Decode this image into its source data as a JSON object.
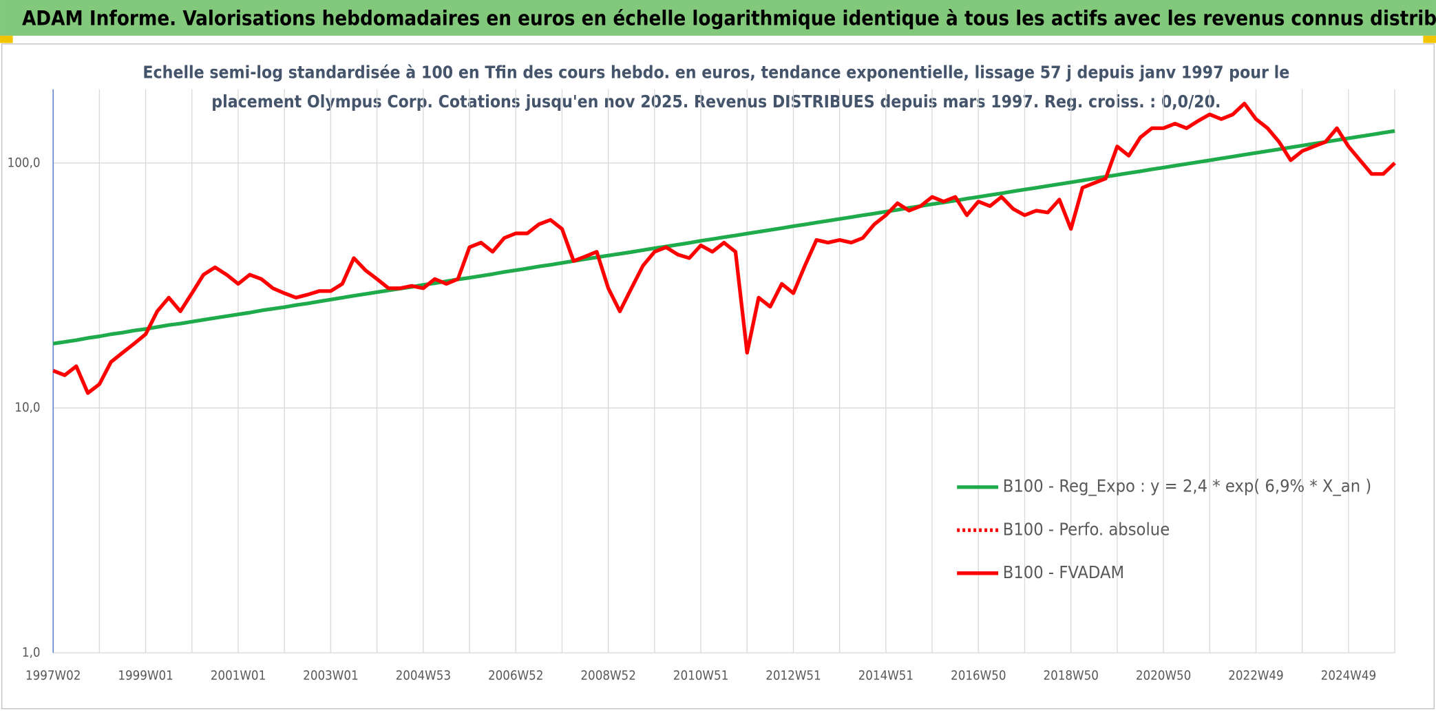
{
  "chart_data": {
    "type": "line",
    "title": "ADAM Informe. Valorisations hebdomadaires en euros en échelle logarithmique identique à tous les actifs avec les revenus connus distribués",
    "subtitle": [
      "Echelle semi-log standardisée à 100 en Tfin des cours hebdo. en euros, tendance exponentielle, lissage 57 j depuis janv 1997 pour le",
      "placement Olympus Corp. Cotations jusqu'en nov 2025. Revenus DISTRIBUES depuis mars 1997. Reg. croiss. : 0,0/20."
    ],
    "log_scale": true,
    "grid": true,
    "legend": "lower right",
    "ylim": [
      1,
      200
    ],
    "yticks": [
      {
        "value": 1,
        "label": "1,0"
      },
      {
        "value": 10,
        "label": "10,0"
      },
      {
        "value": 100,
        "label": "100,0"
      }
    ],
    "categories": [
      "1997W02",
      null,
      null,
      null,
      null,
      null,
      null,
      null,
      "1999W01",
      null,
      null,
      null,
      null,
      null,
      null,
      null,
      "2001W01",
      null,
      null,
      null,
      null,
      null,
      null,
      null,
      "2003W01",
      null,
      null,
      null,
      null,
      null,
      null,
      null,
      "2004W53",
      null,
      null,
      null,
      null,
      null,
      null,
      null,
      "2006W52",
      null,
      null,
      null,
      null,
      null,
      null,
      null,
      "2008W52",
      null,
      null,
      null,
      null,
      null,
      null,
      null,
      "2010W51",
      null,
      null,
      null,
      null,
      null,
      null,
      null,
      "2012W51",
      null,
      null,
      null,
      null,
      null,
      null,
      null,
      "2014W51",
      null,
      null,
      null,
      null,
      null,
      null,
      null,
      "2016W50",
      null,
      null,
      null,
      null,
      null,
      null,
      null,
      "2018W50",
      null,
      null,
      null,
      null,
      null,
      null,
      null,
      "2020W50",
      null,
      null,
      null,
      null,
      null,
      null,
      null,
      "2022W49",
      null,
      null,
      null,
      null,
      null,
      null,
      null,
      "2024W49",
      null,
      null,
      null,
      null
    ],
    "series": [
      {
        "name": "B100 - Reg_Expo : y = 2,4 * exp( 6,9% *  X_an )",
        "color": "#1faa4b",
        "style": "solid",
        "values": [
          18.3,
          18.6,
          18.9,
          19.3,
          19.6,
          20.0,
          20.3,
          20.7,
          21.0,
          21.4,
          21.8,
          22.1,
          22.5,
          22.9,
          23.3,
          23.7,
          24.1,
          24.5,
          25.0,
          25.4,
          25.8,
          26.3,
          26.7,
          27.2,
          27.7,
          28.2,
          28.7,
          29.2,
          29.7,
          30.2,
          30.7,
          31.2,
          31.8,
          32.3,
          32.9,
          33.5,
          34.0,
          34.6,
          35.2,
          35.9,
          36.5,
          37.1,
          37.8,
          38.4,
          39.1,
          39.8,
          40.5,
          41.2,
          41.9,
          42.6,
          43.3,
          44.1,
          44.9,
          45.6,
          46.4,
          47.2,
          48.1,
          48.9,
          49.8,
          50.6,
          51.5,
          52.4,
          53.3,
          54.2,
          55.2,
          56.1,
          57.1,
          58.1,
          59.1,
          60.1,
          61.2,
          62.2,
          63.3,
          64.4,
          65.6,
          66.7,
          67.9,
          69.0,
          70.2,
          71.5,
          72.7,
          74.0,
          75.2,
          76.6,
          77.9,
          79.2,
          80.6,
          82.0,
          83.4,
          84.9,
          86.4,
          87.9,
          89.4,
          91.0,
          92.5,
          94.2,
          95.8,
          97.5,
          99.2,
          100.9,
          102.6,
          104.4,
          106.2,
          108.1,
          110.0,
          111.9,
          113.8,
          115.8,
          117.8,
          119.9,
          121.9,
          124.1,
          126.2,
          128.4,
          130.6,
          132.9,
          135.2
        ]
      },
      {
        "name": "B100 - Perfo. absolue",
        "color": "#ff0000",
        "style": "dotted",
        "values": [
          null,
          null,
          null,
          null,
          null,
          null,
          null,
          null,
          null,
          null,
          null,
          null,
          null,
          null,
          null,
          null,
          null,
          null,
          null,
          null,
          null,
          null,
          null,
          null,
          null,
          null,
          null,
          null,
          null,
          null,
          null,
          null,
          null,
          null,
          null,
          null,
          null,
          null,
          null,
          null,
          null,
          null,
          null,
          null,
          null,
          null,
          null,
          null,
          null,
          null,
          null,
          null,
          null,
          null,
          null,
          null,
          null,
          null,
          null,
          null,
          null,
          null,
          null,
          null,
          null,
          null,
          null,
          null,
          null,
          null,
          null,
          null,
          null,
          null,
          null,
          null,
          null,
          null,
          null,
          null,
          null,
          null,
          null,
          null,
          null,
          null,
          null,
          null,
          null,
          null,
          null,
          null,
          null,
          null,
          null,
          null,
          null,
          null,
          null,
          null,
          null,
          null,
          null,
          null,
          null,
          null,
          null,
          null,
          null,
          null,
          null,
          null,
          null,
          null,
          null,
          null,
          null
        ]
      },
      {
        "name": "B100 - FVADAM",
        "color": "#ff0000",
        "style": "solid",
        "values": [
          14.2,
          13.6,
          14.8,
          11.5,
          12.5,
          15.4,
          16.8,
          18.3,
          20.0,
          24.8,
          28.2,
          24.8,
          29.4,
          35.0,
          37.5,
          35.0,
          32.1,
          35.0,
          33.6,
          30.8,
          29.4,
          28.2,
          29.0,
          30.0,
          30.0,
          32.1,
          40.9,
          36.5,
          33.6,
          30.8,
          30.8,
          31.5,
          30.8,
          33.6,
          32.1,
          33.6,
          45.3,
          47.3,
          43.4,
          49.4,
          51.6,
          51.6,
          56.2,
          58.6,
          53.8,
          39.8,
          41.5,
          43.4,
          30.8,
          24.8,
          30.8,
          38.1,
          43.4,
          45.3,
          42.3,
          40.9,
          46.1,
          43.4,
          47.3,
          43.4,
          16.8,
          28.2,
          25.9,
          32.1,
          29.4,
          38.1,
          48.5,
          47.3,
          48.5,
          47.3,
          49.4,
          56.2,
          61.2,
          68.5,
          63.9,
          66.7,
          72.7,
          69.6,
          72.7,
          61.2,
          69.6,
          66.7,
          72.7,
          65.0,
          61.2,
          63.9,
          62.8,
          70.9,
          53.8,
          79.3,
          82.8,
          86.4,
          116.8,
          107.1,
          127.2,
          138.7,
          138.7,
          144.8,
          138.7,
          148.6,
          157.9,
          151.1,
          157.9,
          174.9,
          151.1,
          138.7,
          121.9,
          102.6,
          111.9,
          116.8,
          121.9,
          138.7,
          116.8,
          102.6,
          90.2,
          90.2,
          100.0
        ]
      }
    ]
  }
}
